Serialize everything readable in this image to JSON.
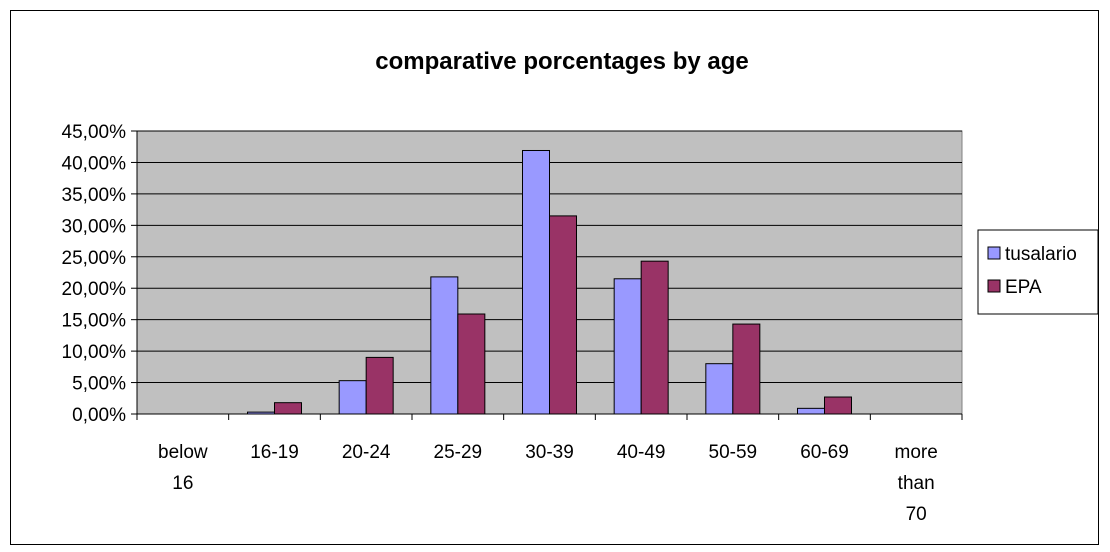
{
  "chart_data": {
    "type": "bar",
    "title": "comparative porcentages by age",
    "xlabel": "",
    "ylabel": "",
    "categories": [
      [
        "below",
        "16"
      ],
      [
        "16-19"
      ],
      [
        "20-24"
      ],
      [
        "25-29"
      ],
      [
        "30-39"
      ],
      [
        "40-49"
      ],
      [
        "50-59"
      ],
      [
        "60-69"
      ],
      [
        "more",
        "than",
        "70"
      ]
    ],
    "series": [
      {
        "name": "tusalario",
        "color": "#9999ff",
        "values": [
          0.0,
          0.3,
          5.3,
          21.8,
          41.9,
          21.5,
          8.0,
          0.9,
          0.0
        ]
      },
      {
        "name": "EPA",
        "color": "#993366",
        "values": [
          0.0,
          1.8,
          9.0,
          15.9,
          31.5,
          24.3,
          14.3,
          2.7,
          0.0
        ]
      }
    ],
    "ylim": [
      0,
      45
    ],
    "yticks": [
      "0,00%",
      "5,00%",
      "10,00%",
      "15,00%",
      "20,00%",
      "25,00%",
      "30,00%",
      "35,00%",
      "40,00%",
      "45,00%"
    ],
    "plot_background": "#c0c0c0",
    "grid": true,
    "legend_position": "right"
  }
}
